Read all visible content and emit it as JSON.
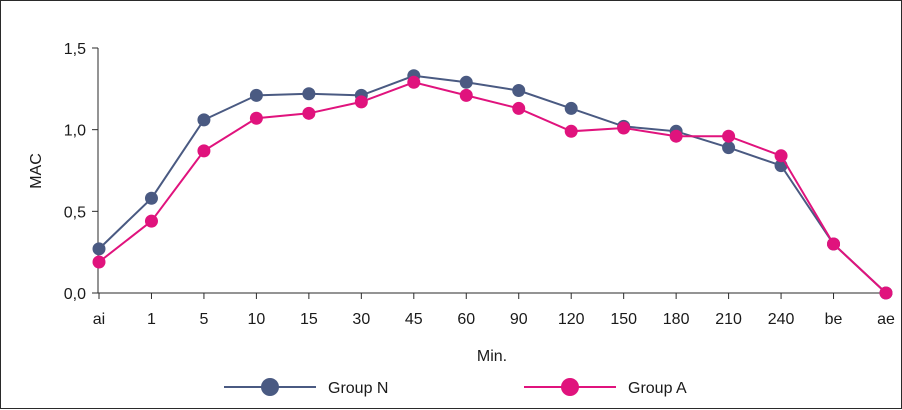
{
  "chart_data": {
    "type": "line",
    "title": "",
    "xlabel": "Min.",
    "ylabel": "MAC",
    "categories": [
      "ai",
      "1",
      "5",
      "10",
      "15",
      "30",
      "45",
      "60",
      "90",
      "120",
      "150",
      "180",
      "210",
      "240",
      "be",
      "ae"
    ],
    "ylim": [
      0,
      1.5
    ],
    "yticks": [
      "0,0",
      "0,5",
      "1,0",
      "1,5"
    ],
    "ytick_values": [
      0,
      0.5,
      1.0,
      1.5
    ],
    "grid": false,
    "legend_position": "bottom",
    "series": [
      {
        "name": "Group N",
        "color": "#4a5a82",
        "values": [
          0.27,
          0.58,
          1.06,
          1.21,
          1.22,
          1.21,
          1.33,
          1.29,
          1.24,
          1.13,
          1.02,
          0.99,
          0.89,
          0.78,
          0.3,
          0.0
        ]
      },
      {
        "name": "Group A",
        "color": "#e0137d",
        "values": [
          0.19,
          0.44,
          0.87,
          1.07,
          1.1,
          1.17,
          1.29,
          1.21,
          1.13,
          0.99,
          1.01,
          0.96,
          0.96,
          0.84,
          0.3,
          0.0
        ]
      }
    ]
  }
}
